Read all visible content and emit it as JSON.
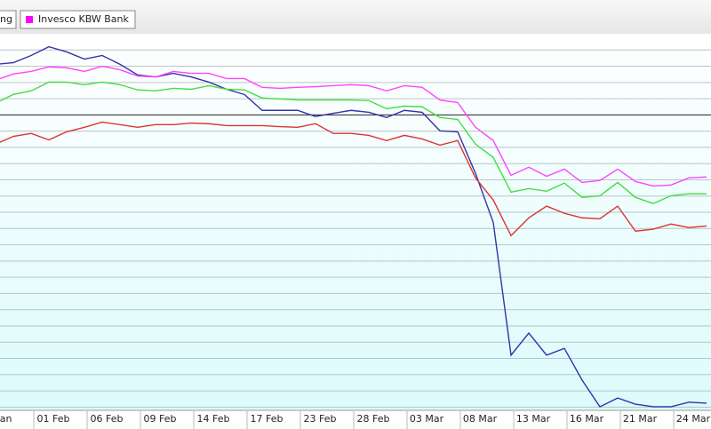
{
  "chart_data": {
    "type": "line",
    "legend": [
      {
        "label": "ng"
      },
      {
        "label": "Invesco KBW Bank",
        "color": "#ff00ff"
      }
    ],
    "categories": [
      "Jan",
      null,
      null,
      "01 Feb",
      null,
      null,
      "06 Feb",
      null,
      null,
      "09 Feb",
      null,
      null,
      "14 Feb",
      null,
      null,
      "17 Feb",
      null,
      null,
      "23 Feb",
      null,
      null,
      "28 Feb",
      null,
      null,
      "03 Mar",
      null,
      null,
      "08 Mar",
      null,
      null,
      "13 Mar",
      null,
      null,
      "16 Mar",
      null,
      null,
      "21 Mar",
      null,
      null,
      "24 Mar",
      null
    ],
    "series": [
      {
        "color": "#3333aa",
        "values": [
          15.6,
          16.1,
          18.3,
          21.0,
          19.4,
          17.2,
          18.3,
          15.6,
          12.3,
          11.7,
          12.8,
          11.7,
          10.1,
          7.9,
          6.3,
          1.4,
          1.4,
          1.4,
          -0.5,
          0.5,
          1.4,
          0.8,
          -0.8,
          1.4,
          0.8,
          -4.9,
          -5.2,
          -18.0,
          -33.1,
          -74.0,
          -67.2,
          -74.0,
          -71.9,
          -81.7,
          -89.9,
          -87.2,
          -89.1,
          -89.9,
          -89.9,
          -88.5,
          -88.8
        ]
      },
      {
        "color": "#ff44ff",
        "values": [
          10.7,
          12.6,
          13.4,
          14.8,
          14.5,
          13.4,
          15.0,
          13.9,
          12.0,
          11.7,
          13.4,
          12.8,
          12.8,
          11.2,
          11.2,
          8.5,
          8.2,
          8.5,
          8.7,
          9.0,
          9.3,
          9.0,
          7.4,
          9.0,
          8.5,
          4.6,
          3.8,
          -3.8,
          -7.9,
          -18.6,
          -16.1,
          -18.9,
          -16.7,
          -20.8,
          -20.2,
          -16.7,
          -20.5,
          -21.9,
          -21.6,
          -19.4,
          -19.1
        ]
      },
      {
        "color": "#44dd44",
        "values": [
          3.6,
          6.3,
          7.4,
          10.1,
          10.1,
          9.3,
          10.1,
          9.3,
          7.7,
          7.4,
          8.2,
          7.9,
          9.0,
          7.9,
          7.7,
          5.2,
          4.9,
          4.6,
          4.6,
          4.6,
          4.6,
          4.4,
          1.9,
          2.7,
          2.5,
          -0.8,
          -1.4,
          -9.0,
          -13.1,
          -23.8,
          -22.7,
          -23.5,
          -21.0,
          -25.4,
          -24.9,
          -20.8,
          -25.4,
          -27.3,
          -24.9,
          -24.3,
          -24.3
        ]
      },
      {
        "color": "#dd3333",
        "values": [
          -9.0,
          -6.6,
          -5.7,
          -7.7,
          -5.2,
          -3.8,
          -2.2,
          -3.0,
          -3.8,
          -3.0,
          -3.0,
          -2.5,
          -2.7,
          -3.3,
          -3.3,
          -3.3,
          -3.6,
          -3.8,
          -2.7,
          -5.7,
          -5.7,
          -6.3,
          -7.9,
          -6.3,
          -7.4,
          -9.3,
          -7.9,
          -19.4,
          -26.2,
          -37.2,
          -31.7,
          -28.1,
          -30.3,
          -31.7,
          -32.0,
          -28.1,
          -35.8,
          -35.2,
          -33.6,
          -34.7,
          -34.2
        ]
      }
    ],
    "ylim": [
      -91,
      25
    ],
    "yticks": [
      -90,
      -85,
      -80,
      -75,
      -70,
      -65,
      -60,
      -55,
      -50,
      -45,
      -40,
      -35,
      -30,
      -25,
      -20,
      -15,
      -10,
      -5,
      0,
      5,
      10,
      15,
      20
    ],
    "grid": true
  }
}
